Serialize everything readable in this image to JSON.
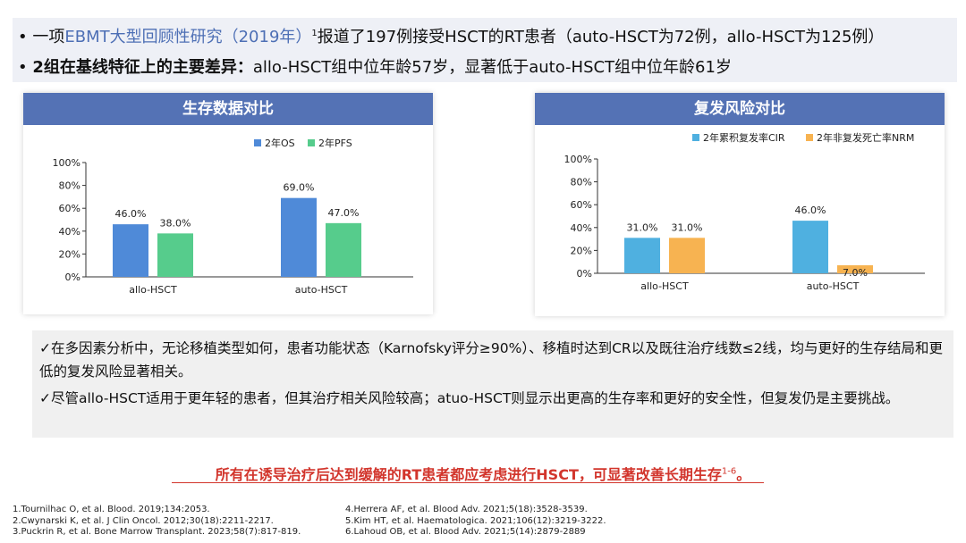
{
  "bullets": {
    "line1": {
      "bullet": "•",
      "pre": "一项",
      "highlight": "EBMT大型回顾性研究（2019年）",
      "sup": "1",
      "post": "报道了197例接受HSCT的RT患者（auto-HSCT为72例，allo-HSCT为125例）"
    },
    "line2": {
      "bullet": "•",
      "bold": "2组在基线特征上的主要差异：",
      "rest": "allo-HSCT组中位年龄57岁，显著低于auto-HSCT组中位年龄61岁"
    }
  },
  "colors": {
    "header": "#5472b5",
    "highlight": "#4d6fb5",
    "os": "#4f8ad8",
    "pfs": "#56cc8c",
    "cir": "#4fb0e0",
    "nrm": "#f7b351",
    "conclusion": "#d2352c"
  },
  "chart_data": [
    {
      "type": "bar",
      "title": "生存数据对比",
      "categories": [
        "allo-HSCT",
        "auto-HSCT"
      ],
      "series": [
        {
          "name": "2年OS",
          "values": [
            46.0,
            69.0
          ],
          "labels": [
            "46.0%",
            "69.0%"
          ],
          "color": "#4f8ad8"
        },
        {
          "name": "2年PFS",
          "values": [
            38.0,
            47.0
          ],
          "labels": [
            "38.0%",
            "47.0%"
          ],
          "color": "#56cc8c"
        }
      ],
      "yticks": [
        "0%",
        "20%",
        "40%",
        "60%",
        "80%",
        "100%"
      ],
      "ylim": [
        0,
        100
      ],
      "grid": false,
      "legend": "top-right"
    },
    {
      "type": "bar",
      "title": "复发风险对比",
      "categories": [
        "allo-HSCT",
        "auto-HSCT"
      ],
      "series": [
        {
          "name": "2年累积复发率CIR",
          "values": [
            31.0,
            46.0
          ],
          "labels": [
            "31.0%",
            "46.0%"
          ],
          "color": "#4fb0e0"
        },
        {
          "name": "2年非复发死亡率NRM",
          "values": [
            31.0,
            7.0
          ],
          "labels": [
            "31.0%",
            "7.0%"
          ],
          "color": "#f7b351"
        }
      ],
      "yticks": [
        "0%",
        "20%",
        "40%",
        "60%",
        "80%",
        "100%"
      ],
      "ylim": [
        0,
        100
      ],
      "grid": false,
      "legend": "top-right"
    }
  ],
  "analysis": {
    "p1": "✓在多因素分析中，无论移植类型如何，患者功能状态（Karnofsky评分≥90%）、移植时达到CR以及既往治疗线数≤2线，均与更好的生存结局和更低的复发风险显著相关。",
    "p2": "✓尽管allo-HSCT适用于更年轻的患者，但其治疗相关风险较高；atuo-HSCT则显示出更高的生存率和更好的安全性，但复发仍是主要挑战。"
  },
  "conclusion": {
    "text": "所有在诱导治疗后达到缓解的RT患者都应考虑进行HSCT，可显著改善长期生存",
    "sup": "1-6",
    "end": "。"
  },
  "references": {
    "left": [
      "1.Tournilhac O, et al. Blood. 2019;134:2053.",
      "2.Cwynarski K, et al. J Clin Oncol. 2012;30(18):2211-2217.",
      "3.Puckrin R, et al. Bone Marrow Transplant. 2023;58(7):817-819."
    ],
    "right": [
      "4.Herrera AF, et al. Blood Adv. 2021;5(18):3528-3539.",
      "5.Kim HT, et al. Haematologica. 2021;106(12):3219-3222.",
      "6.Lahoud OB, et al. Blood Adv. 2021;5(14):2879-2889"
    ]
  }
}
